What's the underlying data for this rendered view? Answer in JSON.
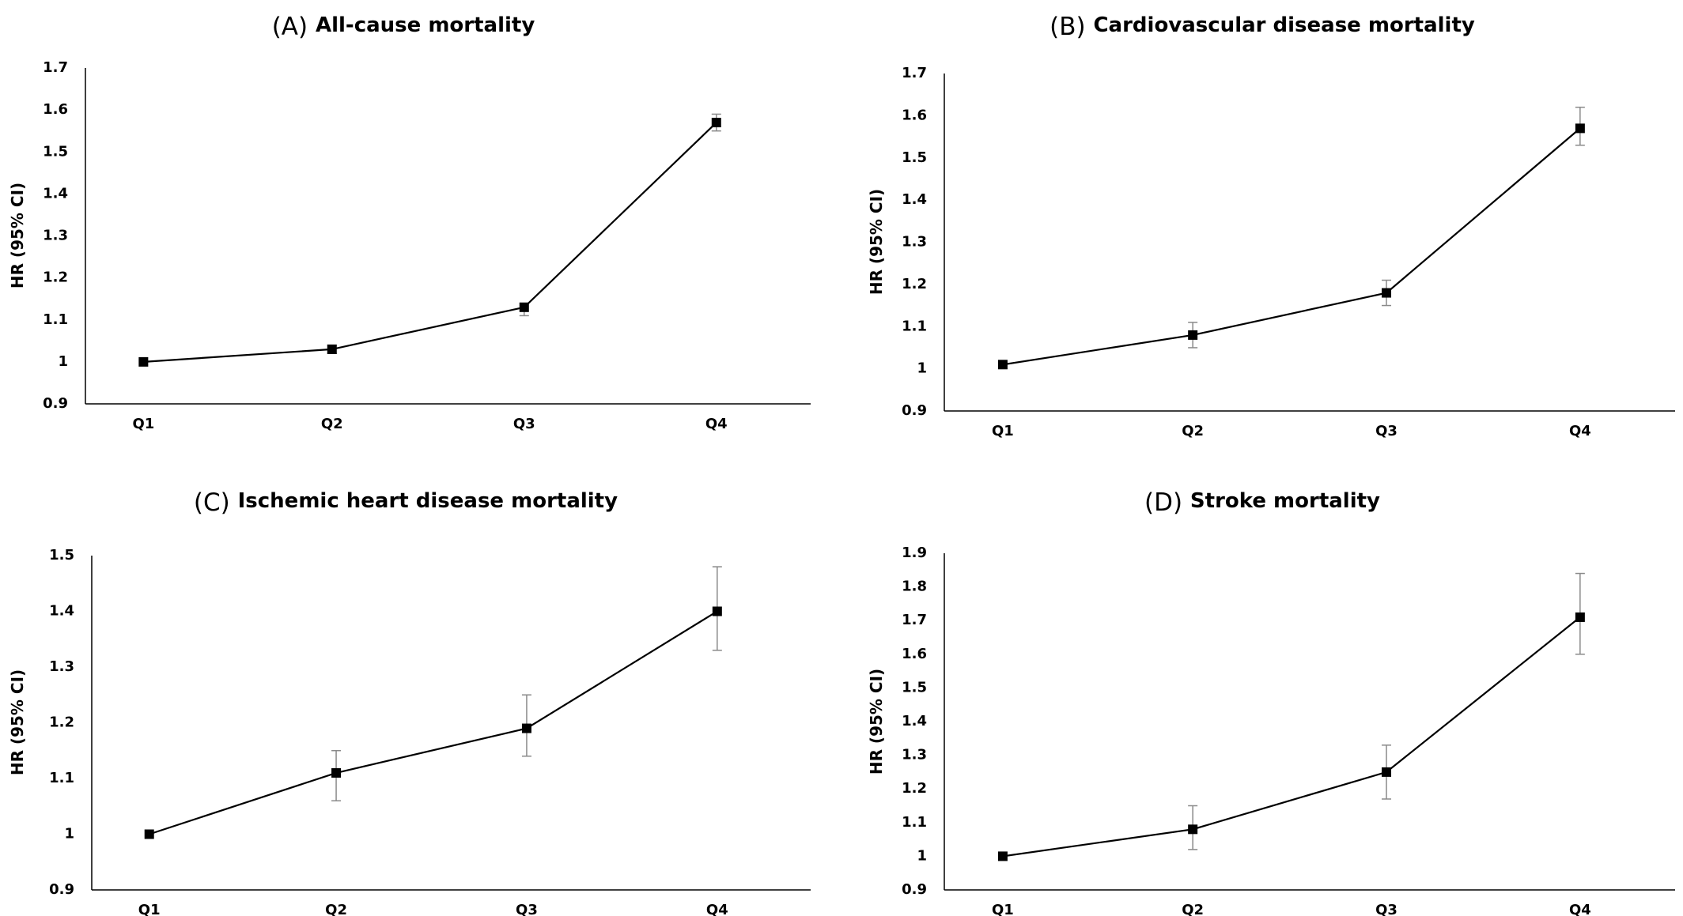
{
  "chart_data": [
    {
      "type": "line",
      "panel_label": "(A)",
      "title": "All-cause mortality",
      "ylabel": "HR (95% CI)",
      "xlabel": "",
      "categories": [
        "Q1",
        "Q2",
        "Q3",
        "Q4"
      ],
      "values": [
        1.0,
        1.03,
        1.13,
        1.57
      ],
      "ci_lower": [
        1.0,
        1.02,
        1.11,
        1.55
      ],
      "ci_upper": [
        1.0,
        1.04,
        1.14,
        1.59
      ],
      "ylim": [
        0.9,
        1.7
      ],
      "yticks": [
        "0.9",
        "1",
        "1.1",
        "1.2",
        "1.3",
        "1.4",
        "1.5",
        "1.6",
        "1.7"
      ]
    },
    {
      "type": "line",
      "panel_label": "(B)",
      "title": "Cardiovascular disease mortality",
      "ylabel": "HR (95% CI)",
      "xlabel": "",
      "categories": [
        "Q1",
        "Q2",
        "Q3",
        "Q4"
      ],
      "values": [
        1.01,
        1.08,
        1.18,
        1.57
      ],
      "ci_lower": [
        1.01,
        1.05,
        1.15,
        1.53
      ],
      "ci_upper": [
        1.01,
        1.11,
        1.21,
        1.62
      ],
      "ylim": [
        0.9,
        1.7
      ],
      "yticks": [
        "0.9",
        "1",
        "1.1",
        "1.2",
        "1.3",
        "1.4",
        "1.5",
        "1.6",
        "1.7"
      ]
    },
    {
      "type": "line",
      "panel_label": "(C)",
      "title": "Ischemic heart disease mortality",
      "ylabel": "HR (95% CI)",
      "xlabel": "",
      "categories": [
        "Q1",
        "Q2",
        "Q3",
        "Q4"
      ],
      "values": [
        1.0,
        1.11,
        1.19,
        1.4
      ],
      "ci_lower": [
        1.0,
        1.06,
        1.14,
        1.33
      ],
      "ci_upper": [
        1.0,
        1.15,
        1.25,
        1.48
      ],
      "ylim": [
        0.9,
        1.5
      ],
      "yticks": [
        "0.9",
        "1",
        "1.1",
        "1.2",
        "1.3",
        "1.4",
        "1.5"
      ]
    },
    {
      "type": "line",
      "panel_label": "(D)",
      "title": "Stroke mortality",
      "ylabel": "HR (95% CI)",
      "xlabel": "",
      "categories": [
        "Q1",
        "Q2",
        "Q3",
        "Q4"
      ],
      "values": [
        1.0,
        1.08,
        1.25,
        1.71
      ],
      "ci_lower": [
        1.0,
        1.02,
        1.17,
        1.6
      ],
      "ci_upper": [
        1.0,
        1.15,
        1.33,
        1.84
      ],
      "ylim": [
        0.9,
        1.9
      ],
      "yticks": [
        "0.9",
        "1",
        "1.1",
        "1.2",
        "1.3",
        "1.4",
        "1.5",
        "1.6",
        "1.7",
        "1.8",
        "1.9"
      ]
    }
  ]
}
